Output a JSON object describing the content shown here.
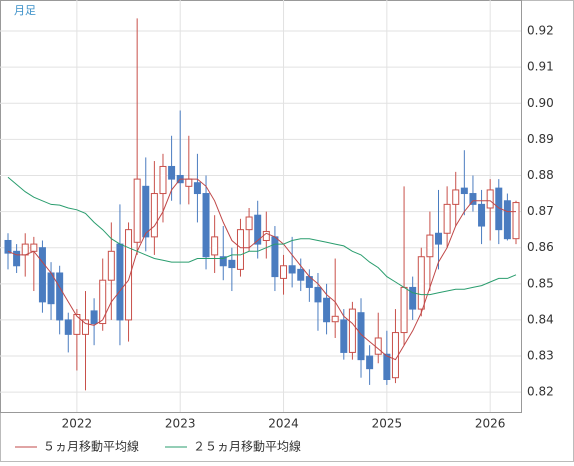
{
  "chart_data": {
    "type": "candlestick",
    "label": "月足",
    "categories": [
      null,
      null,
      null,
      null,
      null,
      null,
      null,
      null,
      "2022",
      null,
      null,
      null,
      null,
      null,
      null,
      null,
      null,
      null,
      null,
      null,
      "2023",
      null,
      null,
      null,
      null,
      null,
      null,
      null,
      null,
      null,
      null,
      null,
      "2024",
      null,
      null,
      null,
      null,
      null,
      null,
      null,
      null,
      null,
      null,
      null,
      "2025",
      null,
      null,
      null,
      null,
      null,
      null,
      null,
      null,
      null,
      null,
      null,
      "2026",
      null,
      null,
      null
    ],
    "open": [
      0.862,
      0.859,
      0.858,
      0.859,
      0.86,
      0.853,
      0.853,
      0.84,
      0.836,
      0.836,
      0.8425,
      0.839,
      0.851,
      0.861,
      0.84,
      0.8615,
      0.877,
      0.863,
      0.875,
      0.8825,
      0.88,
      0.877,
      0.878,
      0.875,
      0.858,
      0.8575,
      0.8565,
      0.854,
      0.865,
      0.869,
      0.862,
      0.863,
      0.8515,
      0.855,
      0.854,
      0.852,
      0.849,
      0.846,
      0.8395,
      0.84,
      0.831,
      0.842,
      0.83,
      0.8305,
      0.8305,
      0.824,
      0.8365,
      0.849,
      0.843,
      0.8575,
      0.864,
      0.864,
      0.872,
      0.8765,
      0.875,
      0.872,
      0.871,
      0.8765,
      0.873,
      0.8625
    ],
    "high": [
      0.864,
      0.861,
      0.864,
      0.863,
      0.862,
      0.856,
      0.855,
      0.842,
      0.843,
      0.848,
      0.846,
      0.857,
      0.867,
      0.872,
      0.867,
      0.9235,
      0.885,
      0.884,
      0.886,
      0.891,
      0.898,
      0.891,
      0.886,
      0.88,
      0.869,
      0.866,
      0.86,
      0.868,
      0.871,
      0.873,
      0.87,
      0.866,
      0.858,
      0.863,
      0.857,
      0.854,
      0.853,
      0.85,
      0.857,
      0.843,
      0.845,
      0.846,
      0.833,
      0.842,
      0.837,
      0.843,
      0.877,
      0.852,
      0.86,
      0.87,
      0.876,
      0.877,
      0.881,
      0.887,
      0.88,
      0.876,
      0.879,
      0.879,
      0.875,
      0.873
    ],
    "low": [
      0.854,
      0.853,
      0.852,
      0.848,
      0.842,
      0.84,
      0.836,
      0.831,
      0.826,
      0.8205,
      0.833,
      0.837,
      0.84,
      0.833,
      0.834,
      0.858,
      0.859,
      0.858,
      0.867,
      0.873,
      0.872,
      0.872,
      0.867,
      0.854,
      0.853,
      0.851,
      0.848,
      0.852,
      0.859,
      0.857,
      0.857,
      0.848,
      0.847,
      0.849,
      0.848,
      0.845,
      0.837,
      0.836,
      0.835,
      0.829,
      0.829,
      0.824,
      0.822,
      0.828,
      0.822,
      0.8225,
      0.833,
      0.84,
      0.841,
      0.848,
      0.854,
      0.86,
      0.866,
      0.869,
      0.87,
      0.861,
      0.862,
      0.861,
      0.862,
      0.861
    ],
    "close": [
      0.8585,
      0.855,
      0.861,
      0.861,
      0.845,
      0.8445,
      0.84,
      0.836,
      0.8415,
      0.84,
      0.839,
      0.851,
      0.859,
      0.84,
      0.865,
      0.879,
      0.863,
      0.875,
      0.8825,
      0.879,
      0.878,
      0.879,
      0.875,
      0.8575,
      0.863,
      0.855,
      0.8545,
      0.865,
      0.8685,
      0.861,
      0.8645,
      0.852,
      0.855,
      0.853,
      0.851,
      0.849,
      0.845,
      0.8395,
      0.841,
      0.831,
      0.843,
      0.829,
      0.8265,
      0.835,
      0.8235,
      0.8365,
      0.849,
      0.843,
      0.8575,
      0.8635,
      0.861,
      0.872,
      0.876,
      0.875,
      0.872,
      0.866,
      0.876,
      0.865,
      0.8625,
      0.8725
    ],
    "up_color": "#c8504a",
    "down_color": "#4a7cc0",
    "series": [
      {
        "name": "５ヵ月移動平均線",
        "color": "#c04848",
        "values": [
          0.859,
          0.858,
          0.858,
          0.859,
          0.856,
          0.853,
          0.849,
          0.845,
          0.841,
          0.839,
          0.8385,
          0.84,
          0.845,
          0.848,
          0.851,
          0.859,
          0.864,
          0.866,
          0.87,
          0.876,
          0.879,
          0.879,
          0.879,
          0.877,
          0.873,
          0.867,
          0.862,
          0.86,
          0.86,
          0.862,
          0.864,
          0.863,
          0.861,
          0.858,
          0.855,
          0.852,
          0.85,
          0.847,
          0.845,
          0.841,
          0.839,
          0.836,
          0.834,
          0.832,
          0.83,
          0.829,
          0.833,
          0.837,
          0.842,
          0.849,
          0.856,
          0.86,
          0.866,
          0.87,
          0.873,
          0.873,
          0.873,
          0.871,
          0.87,
          0.87
        ]
      },
      {
        "name": "２５ヵ月移動平均線",
        "color": "#2a9d6e",
        "values": [
          0.8795,
          0.8775,
          0.8755,
          0.874,
          0.873,
          0.872,
          0.8718,
          0.871,
          0.8705,
          0.8695,
          0.867,
          0.865,
          0.8625,
          0.861,
          0.86,
          0.859,
          0.858,
          0.857,
          0.8565,
          0.856,
          0.856,
          0.856,
          0.857,
          0.857,
          0.857,
          0.857,
          0.858,
          0.858,
          0.859,
          0.859,
          0.86,
          0.861,
          0.861,
          0.862,
          0.8625,
          0.8625,
          0.862,
          0.8615,
          0.861,
          0.8605,
          0.859,
          0.858,
          0.856,
          0.8545,
          0.852,
          0.8505,
          0.849,
          0.8475,
          0.847,
          0.847,
          0.8475,
          0.848,
          0.8485,
          0.8485,
          0.849,
          0.8495,
          0.8505,
          0.8515,
          0.8515,
          0.8525
        ]
      }
    ],
    "ylim": [
      0.8145,
      0.9286
    ],
    "yticks": [
      0.82,
      0.83,
      0.84,
      0.85,
      0.86,
      0.87,
      0.88,
      0.89,
      {
        "value": 0.9,
        "label": "0.90"
      },
      0.91,
      0.92
    ],
    "grid": true
  }
}
